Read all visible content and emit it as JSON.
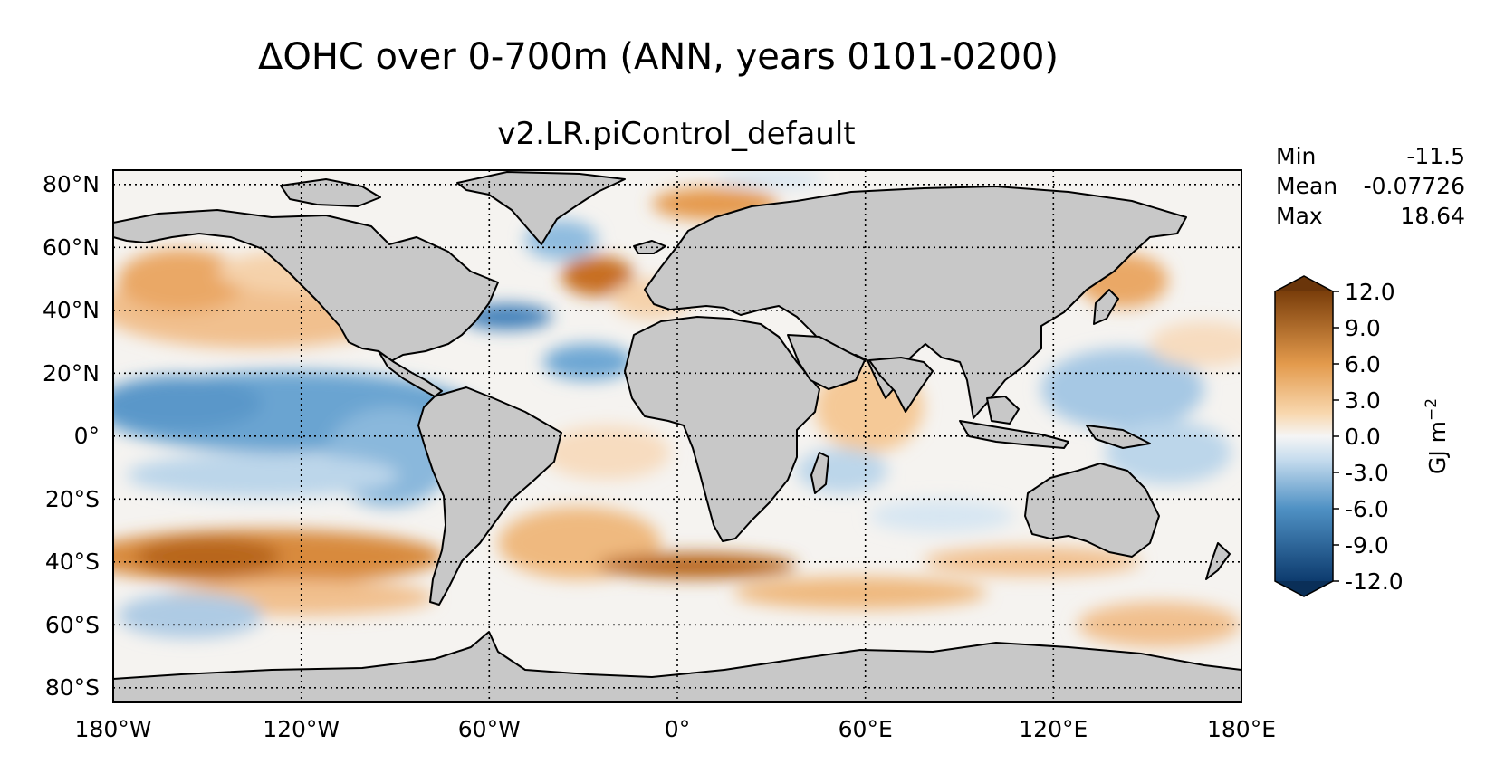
{
  "figure": {
    "title": "ΔOHC over 0-700m (ANN, years 0101-0200)",
    "subtitle": "v2.LR.piControl_default"
  },
  "stats": {
    "min_label": "Min",
    "min_value": "-11.5",
    "mean_label": "Mean",
    "mean_value": "-0.07726",
    "max_label": "Max",
    "max_value": "18.64"
  },
  "map": {
    "lon_ticks": [
      "180°W",
      "120°W",
      "60°W",
      "0°",
      "60°E",
      "120°E",
      "180°E"
    ],
    "lat_ticks": [
      "80°N",
      "60°N",
      "40°N",
      "20°N",
      "0°",
      "20°S",
      "40°S",
      "60°S",
      "80°S"
    ]
  },
  "colorbar": {
    "label": "GJ m",
    "label_exponent": "−2",
    "ticks": [
      "12.0",
      "9.0",
      "6.0",
      "3.0",
      "0.0",
      "-3.0",
      "-6.0",
      "-9.0",
      "-12.0"
    ],
    "colors": {
      "neg_max": "#0d3b6e",
      "neg_mid": "#4f91c4",
      "neg_low": "#c6dcee",
      "zero": "#f5f5f5",
      "pos_low": "#f8d7ae",
      "pos_mid": "#e39a4c",
      "pos_max": "#7a3e0b",
      "land": "#c8c8c8"
    }
  },
  "chart_data": {
    "type": "heatmap",
    "title": "ΔOHC over 0-700m (ANN, years 0101-0200)",
    "subtitle": "v2.LR.piControl_default",
    "variable": "ΔOHC",
    "units": "GJ m^-2",
    "x_range": [
      -180,
      180
    ],
    "y_range": [
      -90,
      90
    ],
    "color_range": [
      -12.0,
      12.0
    ],
    "colorbar_ticks": [
      12.0,
      9.0,
      6.0,
      3.0,
      0.0,
      -3.0,
      -6.0,
      -9.0,
      -12.0
    ],
    "stats": {
      "min": -11.5,
      "mean": -0.07726,
      "max": 18.64
    }
  }
}
